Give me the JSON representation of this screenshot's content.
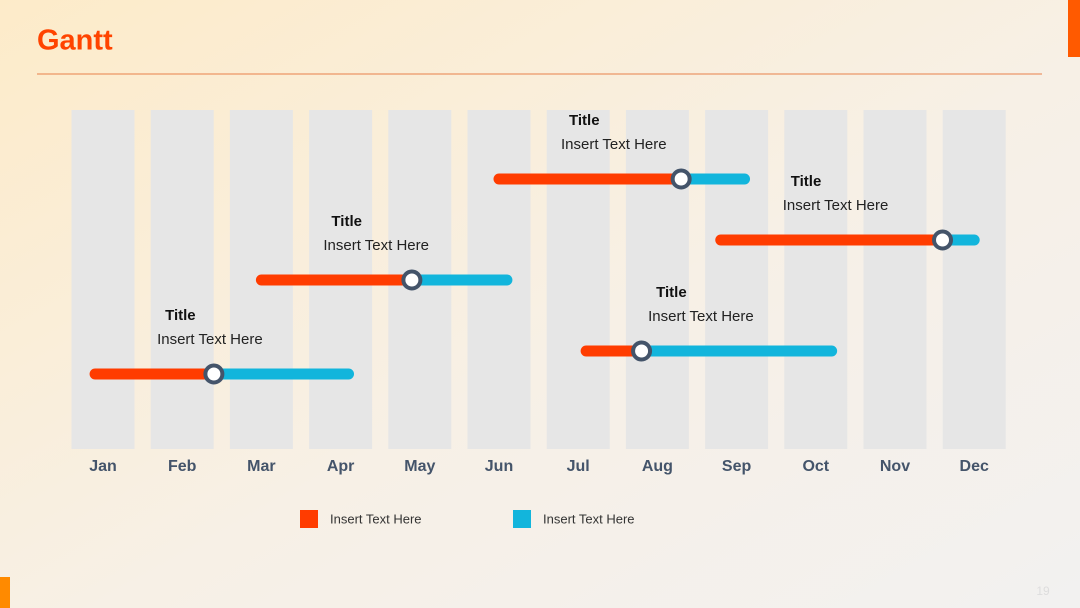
{
  "chart_data": {
    "type": "gantt",
    "title": "Gantt",
    "categories": [
      "Jan",
      "Feb",
      "Mar",
      "Apr",
      "May",
      "Jun",
      "Jul",
      "Aug",
      "Sep",
      "Oct",
      "Nov",
      "Dec"
    ],
    "xlim": [
      -0.5,
      11.5
    ],
    "series": [
      {
        "name": "Insert Text Here",
        "color": "#ff3c00"
      },
      {
        "name": "Insert Text Here",
        "color": "#12b5dc"
      }
    ],
    "tasks": [
      {
        "title": "Title",
        "text": "Insert Text Here",
        "start": -0.1,
        "progress": 1.4,
        "end": 3.1
      },
      {
        "title": "Title",
        "text": "Insert Text Here",
        "start": 2.0,
        "progress": 3.9,
        "end": 5.1
      },
      {
        "title": "Title",
        "text": "Insert Text Here",
        "start": 5.0,
        "progress": 7.3,
        "end": 8.1
      },
      {
        "title": "Title",
        "text": "Insert Text Here",
        "start": 7.8,
        "progress": 10.6,
        "end": 11.0
      },
      {
        "title": "Title",
        "text": "Insert Text Here",
        "start": 6.1,
        "progress": 6.8,
        "end": 9.2
      }
    ]
  },
  "page_number": "19"
}
